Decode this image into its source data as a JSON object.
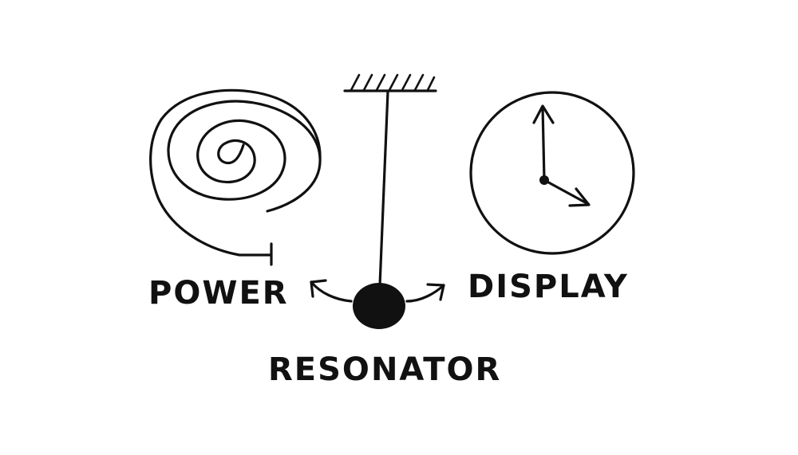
{
  "labels": {
    "power": "POWER",
    "display": "DISPLAY",
    "resonator": "RESONATOR"
  },
  "icons": [
    "spring-spiral-icon",
    "pendulum-icon",
    "clock-face-icon"
  ],
  "ink_color": "#111111",
  "background_color": "#ffffff"
}
